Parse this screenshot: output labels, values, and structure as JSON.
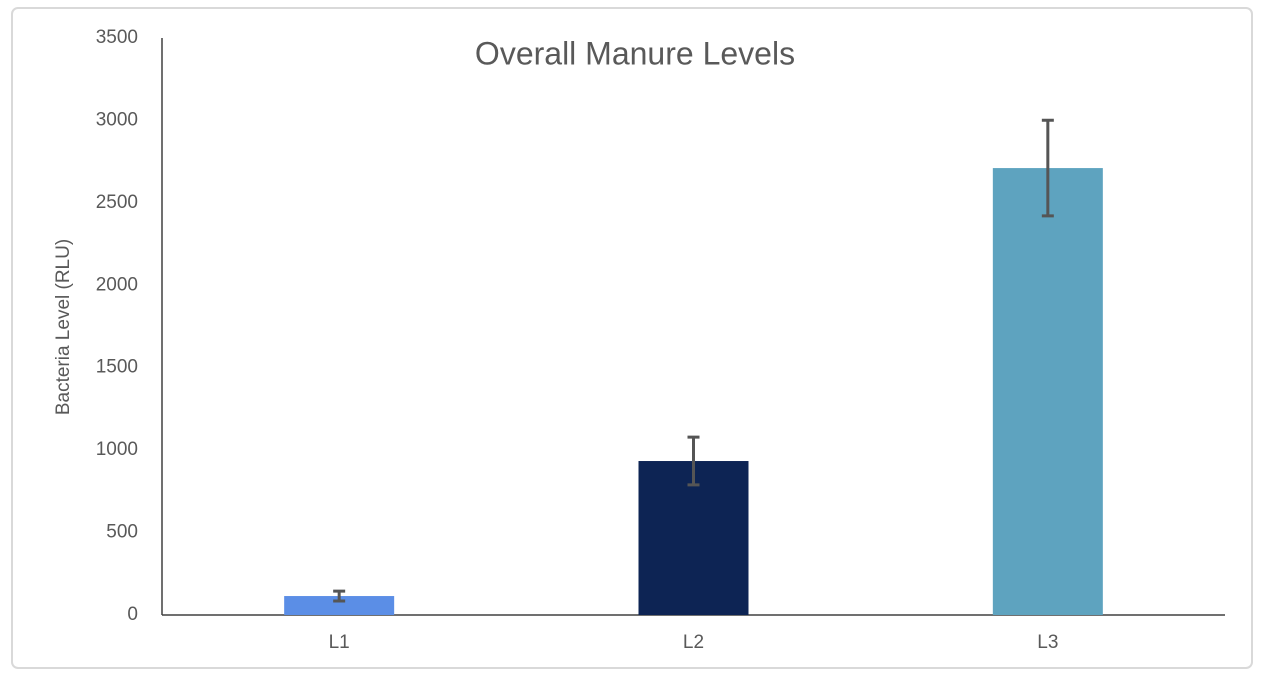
{
  "chart_data": {
    "type": "bar",
    "title": "Overall Manure Levels",
    "y_label": "Bacteria Level (RLU)",
    "categories": [
      "L1",
      "L2",
      "L3"
    ],
    "values": [
      115,
      934,
      2711
    ],
    "errors": [
      30,
      145,
      290
    ],
    "colors": [
      "#5b8ee6",
      "#0d2454",
      "#5ea3bf"
    ],
    "error_color": "#555555",
    "ylim": [
      0,
      3500
    ],
    "yticks": [
      0,
      500,
      1000,
      1500,
      2000,
      2500,
      3000,
      3500
    ],
    "grid": false
  }
}
